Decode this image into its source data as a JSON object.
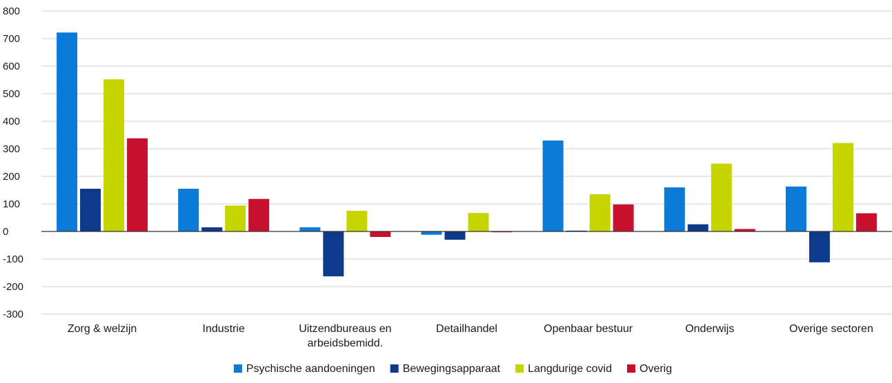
{
  "chart_data": {
    "type": "bar",
    "categories": [
      [
        "Zorg & welzijn"
      ],
      [
        "Industrie"
      ],
      [
        "Uitzendbureaus en",
        "arbeidsbemidd."
      ],
      [
        "Detailhandel"
      ],
      [
        "Openbaar bestuur"
      ],
      [
        "Onderwijs"
      ],
      [
        "Overige sectoren"
      ]
    ],
    "series": [
      {
        "name": "Psychische aandoeningen",
        "color": "#0a7bd6",
        "values": [
          722,
          155,
          15,
          -12,
          330,
          160,
          163
        ]
      },
      {
        "name": "Bewegingsapparaat",
        "color": "#0d3a8a",
        "values": [
          155,
          15,
          -163,
          -30,
          3,
          26,
          -112
        ]
      },
      {
        "name": "Langdurige covid",
        "color": "#c6d400",
        "values": [
          552,
          94,
          75,
          67,
          135,
          246,
          321
        ]
      },
      {
        "name": "Overig",
        "color": "#c8102e",
        "values": [
          338,
          118,
          -20,
          -3,
          98,
          9,
          66
        ]
      }
    ],
    "ylim": [
      -300,
      800
    ],
    "yticks": [
      -300,
      -200,
      -100,
      0,
      100,
      200,
      300,
      400,
      500,
      600,
      700,
      800
    ],
    "grid": true,
    "legend": "bottom-center"
  }
}
